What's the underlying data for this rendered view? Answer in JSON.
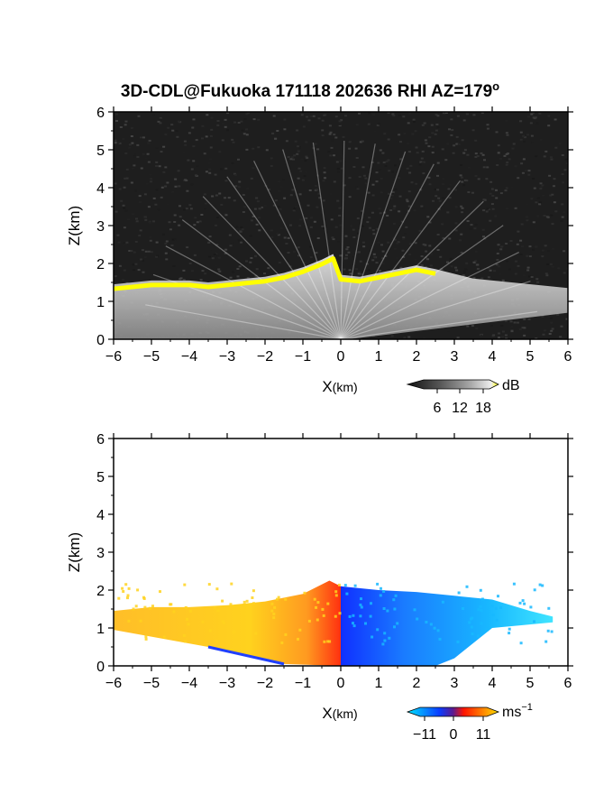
{
  "title": "3D-CDL@Fukuoka 171118 202636 RHI AZ=179",
  "title_degree": "o",
  "chart_data": [
    {
      "type": "heatmap",
      "quantity": "backscatter intensity",
      "xlabel_main": "X",
      "xlabel_unit": "(km)",
      "ylabel": "Z(km)",
      "xlim": [
        -6,
        6
      ],
      "ylim": [
        0,
        6
      ],
      "x_ticks": [
        -6,
        -5,
        -4,
        -3,
        -2,
        -1,
        0,
        1,
        2,
        3,
        4,
        5,
        6
      ],
      "y_ticks": [
        0,
        1,
        2,
        3,
        4,
        5,
        6
      ],
      "grid": false,
      "legend_position": "bottom-right",
      "colorbar": {
        "unit": "dB",
        "tick_labels": [
          "6",
          "12",
          "18"
        ],
        "tick_values": [
          6,
          12,
          18
        ],
        "colors": [
          "#111111",
          "#555555",
          "#999999",
          "#dddddd",
          "#ffff00"
        ]
      },
      "cloud_base_top_km": [
        {
          "x": -6.0,
          "z": 1.45
        },
        {
          "x": -5.5,
          "z": 1.5
        },
        {
          "x": -5.0,
          "z": 1.55
        },
        {
          "x": -4.5,
          "z": 1.55
        },
        {
          "x": -4.0,
          "z": 1.55
        },
        {
          "x": -3.5,
          "z": 1.5
        },
        {
          "x": -3.0,
          "z": 1.55
        },
        {
          "x": -2.5,
          "z": 1.6
        },
        {
          "x": -2.0,
          "z": 1.65
        },
        {
          "x": -1.5,
          "z": 1.75
        },
        {
          "x": -1.0,
          "z": 1.9
        },
        {
          "x": -0.5,
          "z": 2.1
        },
        {
          "x": -0.2,
          "z": 2.25
        },
        {
          "x": 0.0,
          "z": 1.7
        },
        {
          "x": 0.5,
          "z": 1.65
        },
        {
          "x": 1.0,
          "z": 1.75
        },
        {
          "x": 1.5,
          "z": 1.85
        },
        {
          "x": 2.0,
          "z": 1.95
        },
        {
          "x": 2.5,
          "z": 1.85
        }
      ]
    },
    {
      "type": "heatmap",
      "quantity": "radial velocity",
      "xlabel_main": "X",
      "xlabel_unit": "(km)",
      "ylabel": "Z(km)",
      "xlim": [
        -6,
        6
      ],
      "ylim": [
        0,
        6
      ],
      "x_ticks": [
        -6,
        -5,
        -4,
        -3,
        -2,
        -1,
        0,
        1,
        2,
        3,
        4,
        5,
        6
      ],
      "y_ticks": [
        0,
        1,
        2,
        3,
        4,
        5,
        6
      ],
      "grid": false,
      "legend_position": "bottom-right",
      "colorbar": {
        "unit_base": "ms",
        "unit_exp": "−1",
        "tick_labels": [
          "−11",
          "0",
          "11"
        ],
        "tick_values": [
          -11,
          0,
          11
        ],
        "colors": [
          "#00e5ff",
          "#0a3cff",
          "#ff1500",
          "#ffe000"
        ]
      },
      "echo_top_km": [
        {
          "x": -6.0,
          "z": 1.45
        },
        {
          "x": -5.0,
          "z": 1.55
        },
        {
          "x": -4.0,
          "z": 1.55
        },
        {
          "x": -3.0,
          "z": 1.6
        },
        {
          "x": -2.0,
          "z": 1.7
        },
        {
          "x": -1.0,
          "z": 1.9
        },
        {
          "x": -0.3,
          "z": 2.25
        },
        {
          "x": 0.0,
          "z": 2.1
        },
        {
          "x": 1.0,
          "z": 2.0
        },
        {
          "x": 2.0,
          "z": 1.95
        },
        {
          "x": 3.0,
          "z": 1.85
        },
        {
          "x": 4.0,
          "z": 1.75
        },
        {
          "x": 5.0,
          "z": 1.45
        },
        {
          "x": 5.6,
          "z": 1.3
        }
      ],
      "velocity_left_ms": 9,
      "velocity_right_ms": -7
    }
  ]
}
